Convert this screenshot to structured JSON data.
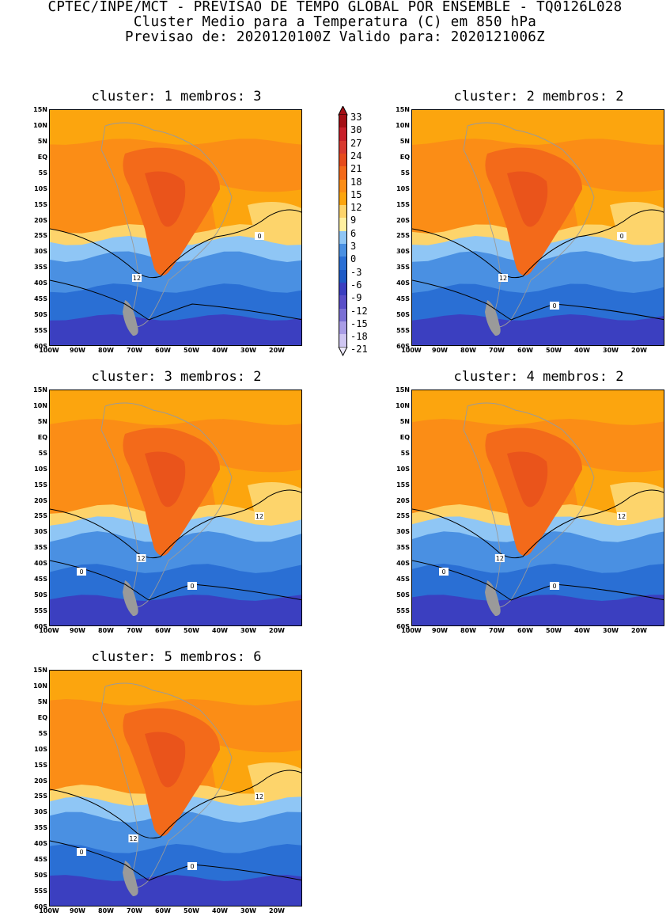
{
  "header": {
    "line1": "CPTEC/INPE/MCT - PREVISAO DE TEMPO GLOBAL POR ENSEMBLE - TQ0126L028",
    "line2": "Cluster Medio para a Temperatura (C) em 850 hPa",
    "line3": "Previsao de: 2020120100Z   Valido para: 2020121006Z"
  },
  "axes": {
    "lat_labels": [
      "15N",
      "10N",
      "5N",
      "EQ",
      "5S",
      "10S",
      "15S",
      "20S",
      "25S",
      "30S",
      "35S",
      "40S",
      "45S",
      "50S",
      "55S",
      "60S"
    ],
    "lon_labels": [
      "100W",
      "90W",
      "80W",
      "70W",
      "60W",
      "50W",
      "40W",
      "30W",
      "20W"
    ]
  },
  "colorbar": {
    "levels": [
      "33",
      "30",
      "27",
      "24",
      "21",
      "18",
      "15",
      "12",
      "9",
      "6",
      "3",
      "0",
      "-3",
      "-6",
      "-9",
      "-12",
      "-15",
      "-18",
      "-21"
    ],
    "colors": [
      "#a50f15",
      "#c8202a",
      "#d83a30",
      "#e64b1c",
      "#f36a1a",
      "#fb8d16",
      "#fca50e",
      "#fdd46b",
      "#fff0a0",
      "#8fc6f5",
      "#4a90e2",
      "#2a6fd4",
      "#1e5bc6",
      "#3b3fc0",
      "#5a4fc8",
      "#7b70d4",
      "#a99de6",
      "#cfc6f2"
    ]
  },
  "clusters": [
    {
      "title": "cluster: 1   membros: 3",
      "contours": [
        "12",
        "0"
      ]
    },
    {
      "title": "cluster: 2   membros: 2",
      "contours": [
        "12",
        "0",
        "0"
      ]
    },
    {
      "title": "cluster: 3   membros: 2",
      "contours": [
        "12",
        "12",
        "0",
        "0"
      ]
    },
    {
      "title": "cluster: 4   membros: 2",
      "contours": [
        "12",
        "12",
        "0",
        "0"
      ]
    },
    {
      "title": "cluster: 5   membros: 6",
      "contours": [
        "12",
        "12",
        "0",
        "0"
      ]
    }
  ]
}
